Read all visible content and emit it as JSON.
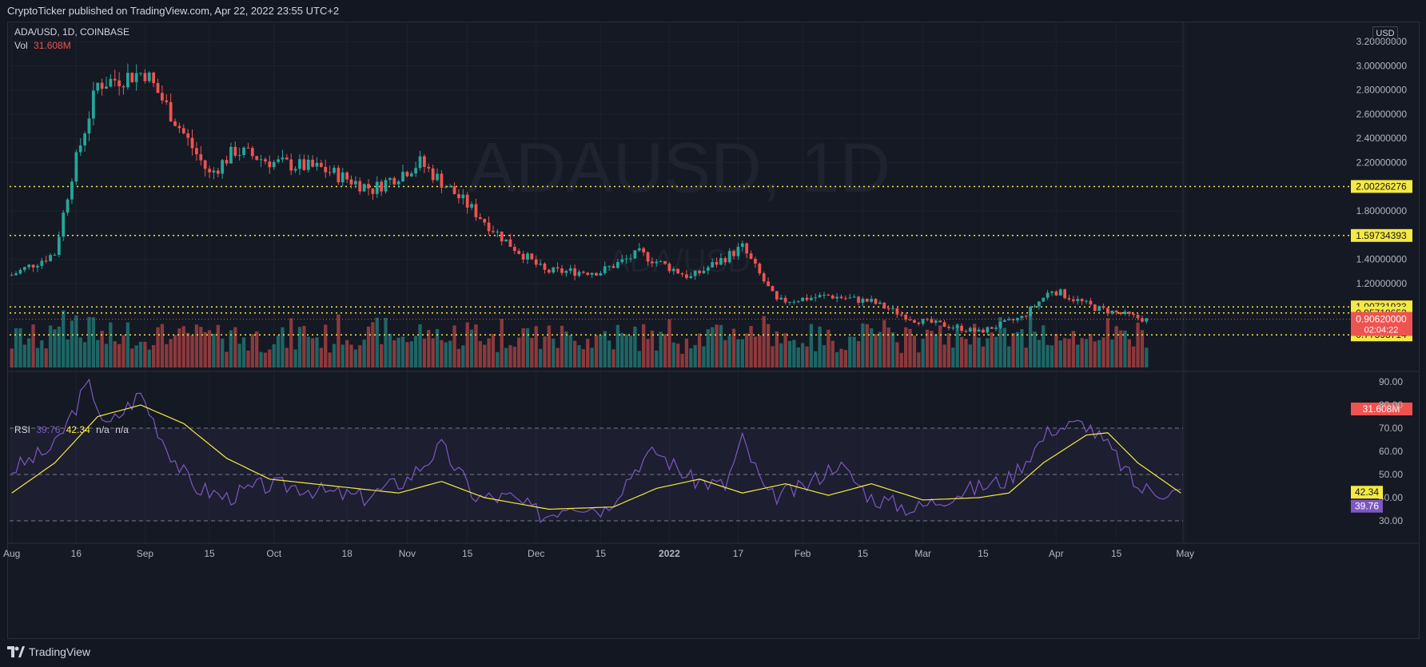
{
  "header": {
    "publisher_text": "CryptoTicker published on TradingView.com, Apr 22, 2022 23:55 UTC+2"
  },
  "legend": {
    "symbol_line": "ADA/USD, 1D, COINBASE",
    "vol_label": "Vol",
    "vol_value": "31.608M",
    "rsi_label": "RSI",
    "rsi_value": "39.76",
    "rsi_ma_value": "42.34",
    "na1": "n/a",
    "na2": "n/a"
  },
  "watermark": {
    "big": "ADAUSD, 1D",
    "small": "ADA/USD"
  },
  "currency": "USD",
  "footer": {
    "brand": "TradingView"
  },
  "colors": {
    "up": "#26a69a",
    "down": "#ef5350",
    "level": "#f5e942",
    "rsi": "#7e57c2",
    "rsi_ma": "#f5e942",
    "bg": "#151924"
  },
  "chart_data": [
    {
      "type": "candlestick",
      "title": "ADA/USD, 1D, COINBASE",
      "ylim": [
        0.7,
        3.25
      ],
      "y_ticks": [
        "3.20000000",
        "3.00000000",
        "2.80000000",
        "2.60000000",
        "2.40000000",
        "2.20000000",
        "2.00000000",
        "1.80000000",
        "1.60000000",
        "1.40000000",
        "1.20000000"
      ],
      "y_tick_values": [
        3.2,
        3.0,
        2.8,
        2.6,
        2.4,
        2.2,
        2.0,
        1.8,
        1.6,
        1.4,
        1.2
      ],
      "x_ticks": [
        "Aug",
        "16",
        "Sep",
        "15",
        "Oct",
        "18",
        "Nov",
        "15",
        "Dec",
        "15",
        "2022",
        "17",
        "Feb",
        "15",
        "Mar",
        "15",
        "Apr",
        "15",
        "May"
      ],
      "x_tick_days": [
        0,
        15,
        31,
        46,
        61,
        78,
        92,
        106,
        122,
        137,
        153,
        169,
        184,
        198,
        212,
        226,
        243,
        257,
        273
      ],
      "horizontal_levels": [
        {
          "value": 2.00226276,
          "label": "2.00226276"
        },
        {
          "value": 1.59734393,
          "label": "1.59734393"
        },
        {
          "value": 1.00731933,
          "label": "1.00731933"
        },
        {
          "value": 0.95718652,
          "label": "0.95718652"
        },
        {
          "value": 0.77593714,
          "label": "0.77593714"
        }
      ],
      "last_price": {
        "value": 0.9062,
        "label": "0.90620000",
        "countdown": "02:04:22"
      },
      "volume_last": "31.608M",
      "closes_sample": [
        {
          "day": 0,
          "close": 1.27
        },
        {
          "day": 10,
          "close": 1.45
        },
        {
          "day": 14,
          "close": 2.1
        },
        {
          "day": 20,
          "close": 2.85
        },
        {
          "day": 31,
          "close": 2.95
        },
        {
          "day": 38,
          "close": 2.55
        },
        {
          "day": 46,
          "close": 2.1
        },
        {
          "day": 52,
          "close": 2.3
        },
        {
          "day": 61,
          "close": 2.2
        },
        {
          "day": 72,
          "close": 2.15
        },
        {
          "day": 84,
          "close": 1.98
        },
        {
          "day": 95,
          "close": 2.2
        },
        {
          "day": 106,
          "close": 1.85
        },
        {
          "day": 115,
          "close": 1.55
        },
        {
          "day": 124,
          "close": 1.3
        },
        {
          "day": 137,
          "close": 1.3
        },
        {
          "day": 146,
          "close": 1.45
        },
        {
          "day": 158,
          "close": 1.25
        },
        {
          "day": 170,
          "close": 1.5
        },
        {
          "day": 178,
          "close": 1.05
        },
        {
          "day": 190,
          "close": 1.1
        },
        {
          "day": 200,
          "close": 1.05
        },
        {
          "day": 210,
          "close": 0.9
        },
        {
          "day": 218,
          "close": 0.85
        },
        {
          "day": 225,
          "close": 0.8
        },
        {
          "day": 235,
          "close": 0.92
        },
        {
          "day": 242,
          "close": 1.15
        },
        {
          "day": 252,
          "close": 1.0
        },
        {
          "day": 264,
          "close": 0.9
        }
      ]
    },
    {
      "type": "line",
      "title": "RSI",
      "ylim": [
        25,
        93
      ],
      "y_ticks": [
        "90.00",
        "80.00",
        "70.00",
        "60.00",
        "50.00",
        "40.00",
        "30.00"
      ],
      "y_tick_values": [
        90,
        80,
        70,
        60,
        50,
        40,
        30
      ],
      "bands": [
        70,
        50,
        30
      ],
      "series": [
        {
          "name": "RSI",
          "values_by_day": [
            [
              0,
              52
            ],
            [
              10,
              62
            ],
            [
              18,
              90
            ],
            [
              22,
              70
            ],
            [
              30,
              85
            ],
            [
              36,
              62
            ],
            [
              42,
              45
            ],
            [
              50,
              40
            ],
            [
              58,
              45
            ],
            [
              66,
              45
            ],
            [
              74,
              42
            ],
            [
              82,
              40
            ],
            [
              92,
              48
            ],
            [
              100,
              62
            ],
            [
              108,
              40
            ],
            [
              116,
              40
            ],
            [
              124,
              32
            ],
            [
              130,
              38
            ],
            [
              138,
              35
            ],
            [
              146,
              55
            ],
            [
              150,
              60
            ],
            [
              158,
              48
            ],
            [
              166,
              45
            ],
            [
              170,
              65
            ],
            [
              176,
              40
            ],
            [
              184,
              44
            ],
            [
              192,
              55
            ],
            [
              200,
              40
            ],
            [
              210,
              35
            ],
            [
              220,
              42
            ],
            [
              232,
              48
            ],
            [
              242,
              70
            ],
            [
              250,
              72
            ],
            [
              256,
              60
            ],
            [
              262,
              44
            ],
            [
              272,
              42
            ]
          ]
        },
        {
          "name": "RSI MA",
          "values_by_day": [
            [
              0,
              42
            ],
            [
              10,
              55
            ],
            [
              20,
              75
            ],
            [
              30,
              80
            ],
            [
              40,
              72
            ],
            [
              50,
              57
            ],
            [
              60,
              48
            ],
            [
              75,
              45
            ],
            [
              90,
              42
            ],
            [
              100,
              47
            ],
            [
              110,
              40
            ],
            [
              125,
              35
            ],
            [
              140,
              36
            ],
            [
              150,
              44
            ],
            [
              160,
              48
            ],
            [
              170,
              42
            ],
            [
              180,
              46
            ],
            [
              190,
              41
            ],
            [
              200,
              46
            ],
            [
              212,
              39
            ],
            [
              225,
              40
            ],
            [
              232,
              42
            ],
            [
              240,
              55
            ],
            [
              250,
              67
            ],
            [
              255,
              68
            ],
            [
              262,
              55
            ],
            [
              272,
              42
            ]
          ]
        }
      ],
      "last_rsi": "39.76",
      "last_ma": "42.34"
    }
  ]
}
